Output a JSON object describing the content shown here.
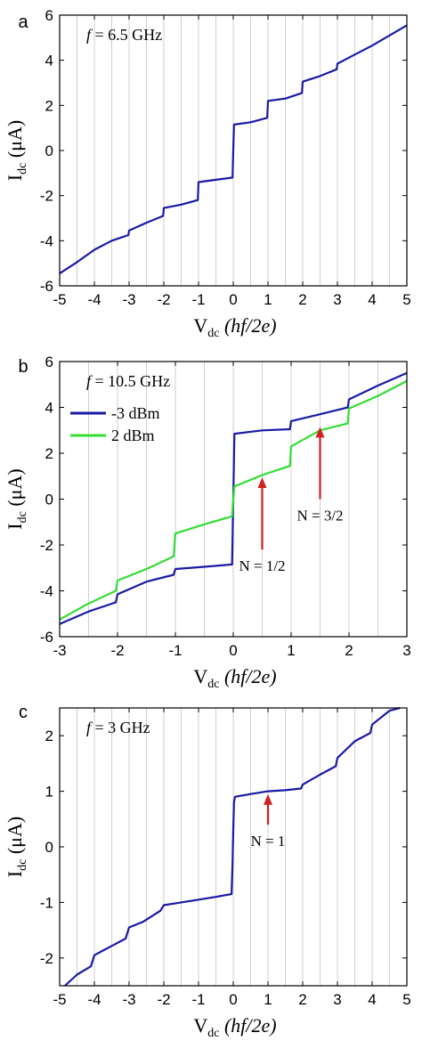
{
  "chart_data": [
    {
      "panel_label": "a",
      "type": "line",
      "annotation": {
        "var": "f",
        "text": " = 6.5 GHz"
      },
      "xlabel": {
        "main": "V",
        "sub": "dc",
        "unit": " (hf/2e)"
      },
      "ylabel": {
        "main": "I",
        "sub": "dc",
        "unit": " (μA)"
      },
      "xlim": [
        -5,
        5
      ],
      "ylim": [
        -6,
        6
      ],
      "xticks": [
        -5,
        -4,
        -3,
        -2,
        -1,
        0,
        1,
        2,
        3,
        4,
        5
      ],
      "yticks": [
        -6,
        -4,
        -2,
        0,
        2,
        4,
        6
      ],
      "vertical_gridlines_at_integer_and_half_integer": true,
      "series": [
        {
          "color": "#1a1aa6",
          "x": [
            -5,
            -4.5,
            -4,
            -3.5,
            -3.02,
            -3,
            -2.5,
            -2.02,
            -2,
            -1.5,
            -1.02,
            -1,
            -0.5,
            -0.02,
            0,
            0.02,
            0.5,
            0.98,
            1,
            1.5,
            1.98,
            2,
            2.5,
            2.98,
            3,
            3.5,
            4,
            4.5,
            5
          ],
          "y": [
            -5.45,
            -4.95,
            -4.4,
            -4.0,
            -3.75,
            -3.55,
            -3.2,
            -2.9,
            -2.55,
            -2.4,
            -2.2,
            -1.4,
            -1.3,
            -1.2,
            0.0,
            1.15,
            1.25,
            1.45,
            2.2,
            2.3,
            2.55,
            3.05,
            3.3,
            3.6,
            3.85,
            4.25,
            4.65,
            5.1,
            5.55
          ]
        }
      ],
      "annotations": []
    },
    {
      "panel_label": "b",
      "type": "line",
      "annotation": {
        "var": "f",
        "text": " = 10.5 GHz"
      },
      "xlabel": {
        "main": "V",
        "sub": "dc",
        "unit": " (hf/2e)"
      },
      "ylabel": {
        "main": "I",
        "sub": "dc",
        "unit": " (μA)"
      },
      "xlim": [
        -3,
        3
      ],
      "ylim": [
        -6,
        6
      ],
      "xticks": [
        -3,
        -2,
        -1,
        0,
        1,
        2,
        3
      ],
      "yticks": [
        -6,
        -4,
        -2,
        0,
        2,
        4,
        6
      ],
      "vertical_gridlines_at_integer_and_half_integer": true,
      "legend": {
        "placement": "upper-left"
      },
      "series": [
        {
          "name": "-3 dBm",
          "color": "#1a1aa6",
          "x": [
            -3,
            -2.5,
            -2.03,
            -2,
            -1.5,
            -1.03,
            -1,
            -0.5,
            -0.02,
            0,
            0.02,
            0.5,
            0.98,
            1,
            1.5,
            1.98,
            2,
            2.5,
            3
          ],
          "y": [
            -5.45,
            -4.9,
            -4.5,
            -4.15,
            -3.6,
            -3.3,
            -3.05,
            -2.95,
            -2.85,
            0.0,
            2.85,
            3.0,
            3.05,
            3.4,
            3.7,
            4.0,
            4.35,
            4.95,
            5.5
          ]
        },
        {
          "name": "2 dBm",
          "color": "#33dd33",
          "x": [
            -3,
            -2.5,
            -2.03,
            -2,
            -1.5,
            -1.03,
            -1,
            -0.5,
            -0.02,
            0,
            0.02,
            0.5,
            0.98,
            1,
            1.5,
            1.98,
            2,
            2.5,
            3
          ],
          "y": [
            -5.25,
            -4.55,
            -4.0,
            -3.55,
            -3.05,
            -2.5,
            -1.5,
            -1.1,
            -0.75,
            0.0,
            0.55,
            1.05,
            1.45,
            2.3,
            3.0,
            3.3,
            3.95,
            4.5,
            5.15
          ]
        }
      ],
      "annotations": [
        {
          "text": "N = 1/2",
          "x": 0.5,
          "arrow_from_y": -2.2,
          "arrow_to_y": 0.95
        },
        {
          "text": "N = 3/2",
          "x": 1.5,
          "arrow_from_y": 0.0,
          "arrow_to_y": 3.15
        }
      ]
    },
    {
      "panel_label": "c",
      "type": "line",
      "annotation": {
        "var": "f",
        "text": " = 3 GHz"
      },
      "xlabel": {
        "main": "V",
        "sub": "dc",
        "unit": " (hf/2e)"
      },
      "ylabel": {
        "main": "I",
        "sub": "dc",
        "unit": " (μA)"
      },
      "xlim": [
        -5,
        5
      ],
      "ylim": [
        -2.5,
        2.5
      ],
      "xticks": [
        -5,
        -4,
        -3,
        -2,
        -1,
        0,
        1,
        2,
        3,
        4,
        5
      ],
      "yticks": [
        -2,
        -1,
        0,
        1,
        2
      ],
      "vertical_gridlines_at_integer_and_half_integer": true,
      "series": [
        {
          "color": "#1a1aa6",
          "x": [
            -4.85,
            -4.5,
            -4.1,
            -4.0,
            -3.7,
            -3.1,
            -3.0,
            -2.6,
            -2.1,
            -2.0,
            -1.5,
            -1.0,
            -0.5,
            -0.05,
            -0.02,
            0,
            0.02,
            0.05,
            0.5,
            1.0,
            1.5,
            1.95,
            2.0,
            2.5,
            2.95,
            3.0,
            3.5,
            3.95,
            4.0,
            4.5,
            4.8
          ],
          "y": [
            -2.5,
            -2.3,
            -2.15,
            -1.95,
            -1.85,
            -1.65,
            -1.45,
            -1.35,
            -1.15,
            -1.05,
            -1.0,
            -0.95,
            -0.9,
            -0.85,
            -0.3,
            0.3,
            0.8,
            0.9,
            0.95,
            1.0,
            1.02,
            1.05,
            1.12,
            1.3,
            1.45,
            1.6,
            1.9,
            2.05,
            2.2,
            2.45,
            2.5
          ]
        }
      ],
      "annotations": [
        {
          "text": "N = 1",
          "x": 1,
          "arrow_from_y": 0.4,
          "arrow_to_y": 0.95
        }
      ]
    }
  ]
}
